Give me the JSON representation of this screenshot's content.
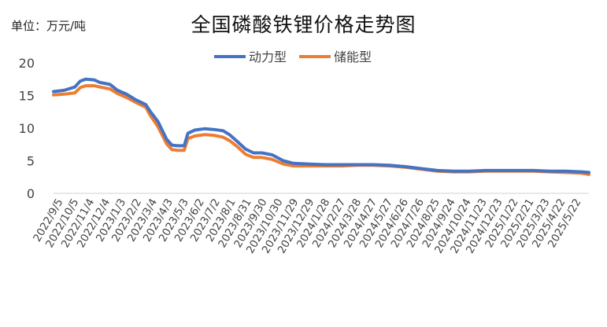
{
  "chart_data": {
    "type": "line",
    "title": "全国磷酸铁锂价格走势图",
    "unit_label": "单位：万元/吨",
    "ylim": [
      0,
      20
    ],
    "yticks": [
      0,
      5,
      10,
      15,
      20
    ],
    "xlabel": "",
    "ylabel": "",
    "grid": false,
    "legend_position": "top",
    "x_tick_labels": [
      "2022/9/5",
      "2022/10/5",
      "2022/11/4",
      "2022/12/4",
      "2023/1/3",
      "2023/2/2",
      "2023/3/4",
      "2023/4/3",
      "2023/5/3",
      "2023/6/2",
      "2023/7/2",
      "2023/8/1",
      "2023/8/31",
      "2023/9/30",
      "2023/10/30",
      "2023/11/29",
      "2023/12/29",
      "2024/1/28",
      "2024/2/27",
      "2024/3/28",
      "2024/4/27",
      "2024/5/27",
      "2024/6/26",
      "2024/7/26",
      "2024/8/25",
      "2024/9/24",
      "2024/10/24",
      "2024/11/23",
      "2024/12/23",
      "2025/1/22",
      "2025/2/21",
      "2025/3/23",
      "2025/4/22",
      "2025/5/22"
    ],
    "x_range": [
      "2022-09-05",
      "2025-06-05"
    ],
    "series": [
      {
        "name": "动力型",
        "color": "#4472C4",
        "points": [
          [
            "2022-09-05",
            15.6
          ],
          [
            "2022-09-25",
            15.8
          ],
          [
            "2022-10-15",
            16.3
          ],
          [
            "2022-10-25",
            17.2
          ],
          [
            "2022-11-04",
            17.5
          ],
          [
            "2022-11-20",
            17.4
          ],
          [
            "2022-12-01",
            17.0
          ],
          [
            "2022-12-20",
            16.7
          ],
          [
            "2023-01-03",
            15.8
          ],
          [
            "2023-01-20",
            15.2
          ],
          [
            "2023-02-05",
            14.4
          ],
          [
            "2023-02-25",
            13.6
          ],
          [
            "2023-03-05",
            12.6
          ],
          [
            "2023-03-20",
            11.0
          ],
          [
            "2023-04-05",
            8.3
          ],
          [
            "2023-04-15",
            7.4
          ],
          [
            "2023-04-25",
            7.3
          ],
          [
            "2023-05-08",
            7.3
          ],
          [
            "2023-05-15",
            9.2
          ],
          [
            "2023-05-28",
            9.7
          ],
          [
            "2023-06-15",
            9.9
          ],
          [
            "2023-07-02",
            9.8
          ],
          [
            "2023-07-20",
            9.6
          ],
          [
            "2023-08-01",
            9.0
          ],
          [
            "2023-08-15",
            8.0
          ],
          [
            "2023-08-31",
            6.8
          ],
          [
            "2023-09-15",
            6.2
          ],
          [
            "2023-10-01",
            6.2
          ],
          [
            "2023-10-20",
            5.9
          ],
          [
            "2023-11-10",
            5.0
          ],
          [
            "2023-11-29",
            4.6
          ],
          [
            "2023-12-29",
            4.5
          ],
          [
            "2024-01-28",
            4.4
          ],
          [
            "2024-02-27",
            4.4
          ],
          [
            "2024-03-28",
            4.4
          ],
          [
            "2024-04-27",
            4.4
          ],
          [
            "2024-05-27",
            4.3
          ],
          [
            "2024-06-26",
            4.1
          ],
          [
            "2024-07-26",
            3.8
          ],
          [
            "2024-08-25",
            3.5
          ],
          [
            "2024-09-24",
            3.4
          ],
          [
            "2024-10-24",
            3.4
          ],
          [
            "2024-11-23",
            3.5
          ],
          [
            "2024-12-23",
            3.5
          ],
          [
            "2025-01-22",
            3.5
          ],
          [
            "2025-02-21",
            3.5
          ],
          [
            "2025-03-23",
            3.4
          ],
          [
            "2025-04-22",
            3.4
          ],
          [
            "2025-05-22",
            3.3
          ],
          [
            "2025-06-05",
            3.2
          ]
        ]
      },
      {
        "name": "储能型",
        "color": "#ED7D31",
        "points": [
          [
            "2022-09-05",
            15.1
          ],
          [
            "2022-09-25",
            15.2
          ],
          [
            "2022-10-15",
            15.4
          ],
          [
            "2022-10-25",
            16.2
          ],
          [
            "2022-11-04",
            16.5
          ],
          [
            "2022-11-20",
            16.5
          ],
          [
            "2022-12-01",
            16.3
          ],
          [
            "2022-12-20",
            16.0
          ],
          [
            "2023-01-03",
            15.3
          ],
          [
            "2023-01-20",
            14.7
          ],
          [
            "2023-02-05",
            14.0
          ],
          [
            "2023-02-25",
            13.2
          ],
          [
            "2023-03-05",
            12.0
          ],
          [
            "2023-03-20",
            10.2
          ],
          [
            "2023-04-05",
            7.6
          ],
          [
            "2023-04-15",
            6.7
          ],
          [
            "2023-04-25",
            6.6
          ],
          [
            "2023-05-08",
            6.6
          ],
          [
            "2023-05-15",
            8.4
          ],
          [
            "2023-05-28",
            8.8
          ],
          [
            "2023-06-15",
            9.0
          ],
          [
            "2023-07-02",
            8.9
          ],
          [
            "2023-07-20",
            8.6
          ],
          [
            "2023-08-01",
            8.1
          ],
          [
            "2023-08-15",
            7.2
          ],
          [
            "2023-08-31",
            6.0
          ],
          [
            "2023-09-15",
            5.5
          ],
          [
            "2023-10-01",
            5.5
          ],
          [
            "2023-10-20",
            5.2
          ],
          [
            "2023-11-10",
            4.5
          ],
          [
            "2023-11-29",
            4.2
          ],
          [
            "2023-12-29",
            4.2
          ],
          [
            "2024-01-28",
            4.2
          ],
          [
            "2024-02-27",
            4.2
          ],
          [
            "2024-03-28",
            4.3
          ],
          [
            "2024-04-27",
            4.3
          ],
          [
            "2024-05-27",
            4.2
          ],
          [
            "2024-06-26",
            4.0
          ],
          [
            "2024-07-26",
            3.7
          ],
          [
            "2024-08-25",
            3.4
          ],
          [
            "2024-09-24",
            3.3
          ],
          [
            "2024-10-24",
            3.3
          ],
          [
            "2024-11-23",
            3.4
          ],
          [
            "2024-12-23",
            3.4
          ],
          [
            "2025-01-22",
            3.4
          ],
          [
            "2025-02-21",
            3.4
          ],
          [
            "2025-03-23",
            3.3
          ],
          [
            "2025-04-22",
            3.2
          ],
          [
            "2025-05-22",
            3.1
          ],
          [
            "2025-06-05",
            2.9
          ]
        ]
      }
    ]
  }
}
